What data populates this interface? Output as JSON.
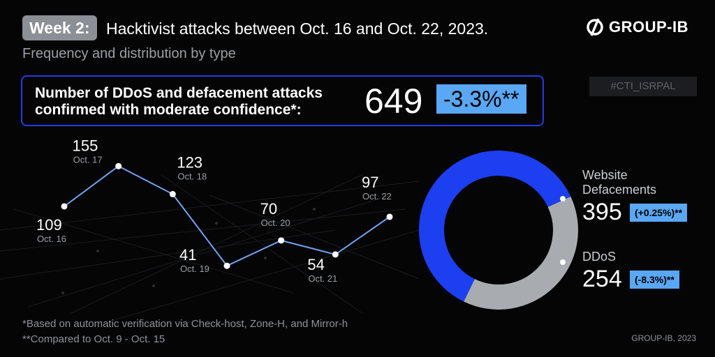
{
  "header": {
    "week_label": "Week 2:",
    "title": "Hacktivist attacks between Oct. 16 and Oct. 22, 2023.",
    "subtitle": "Frequency and distribution by type",
    "brand": "GROUP-IB",
    "hashtag": "#CTI_ISRPAL"
  },
  "summary": {
    "text": "Number of DDoS and defacement attacks confirmed with moderate confidence*:",
    "value": "649",
    "change": "-3.3%**"
  },
  "chart_data": [
    {
      "type": "line",
      "x": [
        "Oct. 16",
        "Oct. 17",
        "Oct. 18",
        "Oct. 19",
        "Oct. 20",
        "Oct. 21",
        "Oct. 22"
      ],
      "series": [
        {
          "values": [
            109,
            155,
            123,
            41,
            70,
            54,
            97
          ]
        }
      ],
      "title": "",
      "xlabel": "",
      "ylabel": "",
      "ylim": [
        30,
        160
      ],
      "grid": false,
      "line_color": "#6fa3ef"
    },
    {
      "type": "pie",
      "style": "donut",
      "slices": [
        {
          "name": "Website Defacements",
          "value": 395,
          "change": "(+0.25%)**",
          "color": "#1c3ff0"
        },
        {
          "name": "DDoS",
          "value": 254,
          "change": "(-8.3%)**",
          "color": "#a8abb0"
        }
      ]
    }
  ],
  "footnotes": {
    "line1": "*Based on automatic verification via Check-host, Zone-H, and Mirror-h",
    "line2": "**Compared to Oct. 9 - Oct. 15"
  },
  "copyright": "GROUP-IB, 2023"
}
